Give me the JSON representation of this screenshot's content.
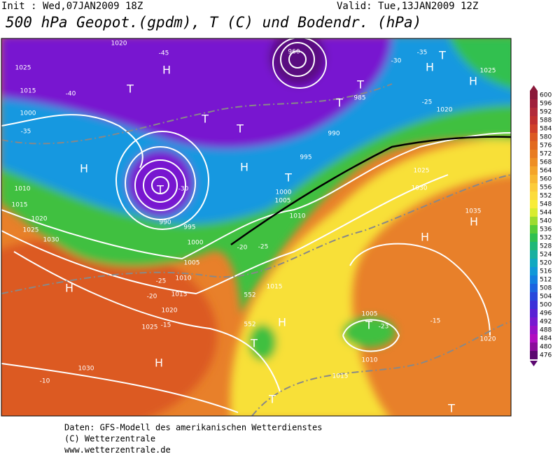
{
  "header": {
    "init": "Init : Wed,07JAN2009 18Z",
    "valid": "Valid: Tue,13JAN2009 12Z",
    "title": "500 hPa Geopot.(gpdm), T (C) und Bodendr. (hPa)"
  },
  "colorbar": {
    "levels": [
      600,
      596,
      592,
      588,
      584,
      580,
      576,
      572,
      568,
      564,
      560,
      556,
      552,
      548,
      544,
      540,
      536,
      532,
      528,
      524,
      520,
      516,
      512,
      508,
      504,
      500,
      496,
      492,
      488,
      484,
      480,
      476
    ],
    "colors": [
      "#8b1a3a",
      "#a0203c",
      "#b22a3a",
      "#c03030",
      "#d0402a",
      "#dc5a24",
      "#e26a20",
      "#e87c22",
      "#ee8e24",
      "#f4a42a",
      "#f8b832",
      "#fccc3a",
      "#fcdc3c",
      "#f8ec38",
      "#d8ec30",
      "#9cdc30",
      "#58cc38",
      "#30c050",
      "#20b878",
      "#18b0a0",
      "#10a8c0",
      "#1098d8",
      "#1480e0",
      "#1c64e0",
      "#2848dc",
      "#3c30d8",
      "#5a20d4",
      "#7818d0",
      "#9610c8",
      "#b00cc0",
      "#8a0c9a",
      "#5c0870"
    ]
  },
  "map_labels": [
    "H",
    "H",
    "H",
    "H",
    "H",
    "H",
    "H",
    "H",
    "H",
    "H",
    "T",
    "T",
    "T",
    "T",
    "T",
    "T",
    "T",
    "T",
    "T",
    "T",
    "T",
    "T",
    "1020",
    "1025",
    "1015",
    "1000",
    "1010",
    "1015",
    "1020",
    "1025",
    "1030",
    "1030",
    "1025",
    "1020",
    "1015",
    "1010",
    "1005",
    "1000",
    "995",
    "990",
    "-45",
    "-40",
    "-35",
    "-30",
    "-25",
    "-20",
    "-15",
    "-10",
    "-20",
    "-25",
    "552",
    "552",
    "1015",
    "1025",
    "1030",
    "1035",
    "1020",
    "1015",
    "-15",
    "-23",
    "1005",
    "1010",
    "960",
    "985",
    "990",
    "995",
    "1000",
    "1005",
    "1010",
    "-35",
    "-30",
    "-25",
    "1020",
    "1025"
  ],
  "footer": [
    "Daten: GFS-Modell des amerikanischen Wetterdienstes",
    "(C) Wetterzentrale",
    "www.wetterzentrale.de"
  ]
}
